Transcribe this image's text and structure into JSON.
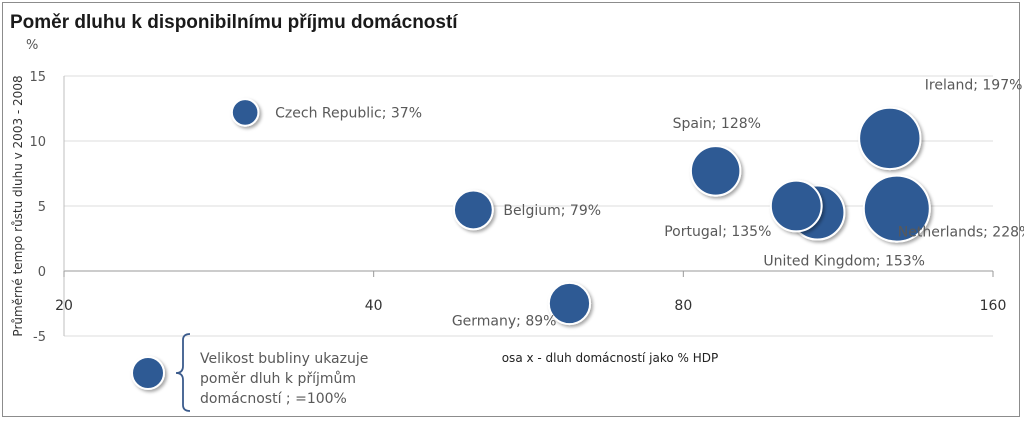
{
  "chart_data": {
    "type": "bubble",
    "title": "Poměr dluhu k disponibilnímu příjmu domácností",
    "ylabel": "Průměrné tempo růstu dluhu v 2003 - 2008",
    "yunit": "%",
    "xlabel": "osa x - dluh domácností jako % HDP",
    "xscale": "log2",
    "xlim": [
      20,
      160
    ],
    "ylim": [
      -5,
      15
    ],
    "xticks": [
      "20",
      "40",
      "80",
      "160"
    ],
    "yticks": [
      "-5",
      "0",
      "5",
      "10",
      "15"
    ],
    "grid": true,
    "bubble_color": "#2e5a94",
    "points": [
      {
        "label": "Czech Republic; 37%",
        "x": 30,
        "y": 12.2,
        "size": 37
      },
      {
        "label": "Belgium; 79%",
        "x": 50,
        "y": 4.7,
        "size": 79
      },
      {
        "label": "Germany; 89%",
        "x": 62,
        "y": -2.5,
        "size": 89
      },
      {
        "label": "Spain; 128%",
        "x": 86,
        "y": 7.7,
        "size": 128
      },
      {
        "label": "Portugal; 135%",
        "x": 103,
        "y": 5.0,
        "size": 135
      },
      {
        "label": "United Kingdom; 153%",
        "x": 108,
        "y": 4.5,
        "size": 153
      },
      {
        "label": "Ireland; 197%",
        "x": 127,
        "y": 10.2,
        "size": 197
      },
      {
        "label": "Netherlands; 228%",
        "x": 129,
        "y": 4.8,
        "size": 228
      }
    ],
    "legend_note": "Velikost bubliny ukazuje poměr dluh k příjmům domácností ; =100%"
  }
}
